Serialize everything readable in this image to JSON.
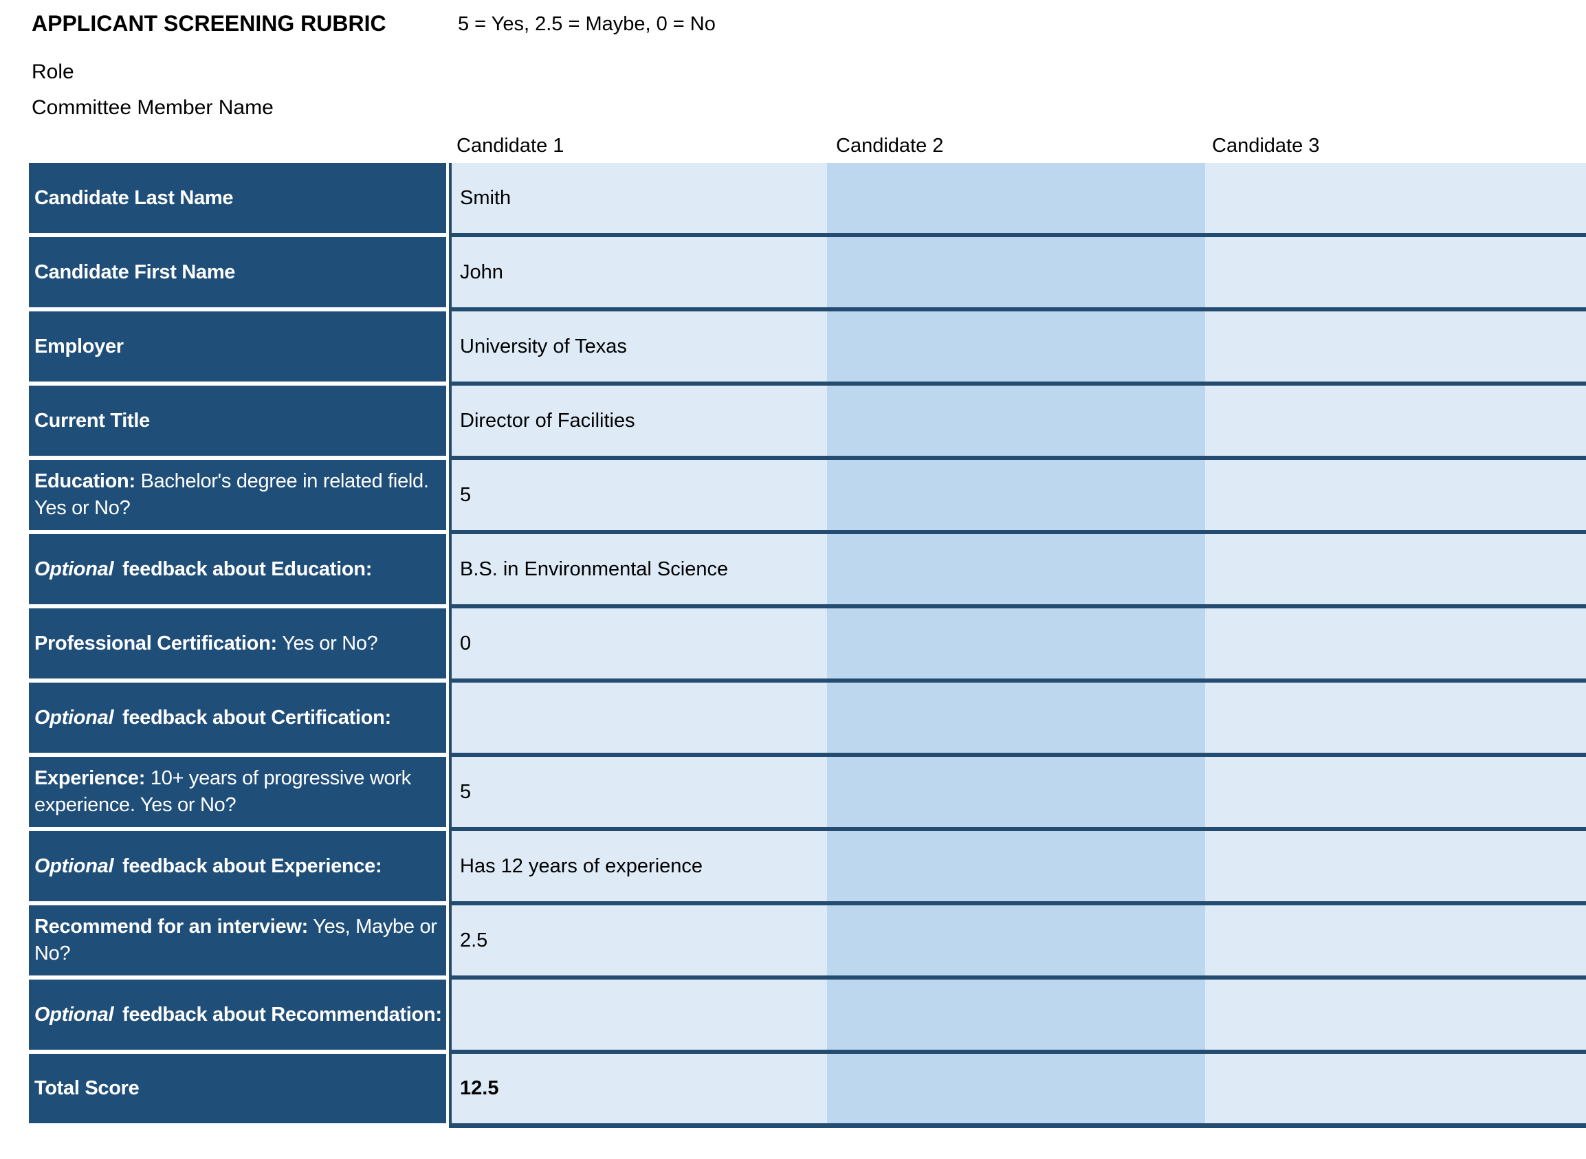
{
  "page": {
    "title": "APPLICANT SCREENING RUBRIC",
    "legend": "5 = Yes, 2.5 = Maybe, 0 = No",
    "role_label": "Role",
    "committee_label": "Committee Member Name"
  },
  "columns": [
    "Candidate 1",
    "Candidate 2",
    "Candidate 3"
  ],
  "colors": {
    "header_navy": "#1F4E79",
    "row_line_navy": "#234C70",
    "candidate_light_blue": "#DEEBF7",
    "candidate_medium_blue": "#BDD7EE",
    "label_text": "#FFFFFF",
    "value_text": "#000000"
  },
  "rows": [
    {
      "label_parts": [
        {
          "text": "Candidate Last Name",
          "bold": true,
          "italic": false
        }
      ],
      "values": [
        "Smith",
        "",
        ""
      ],
      "values_bold": false
    },
    {
      "label_parts": [
        {
          "text": "Candidate First Name",
          "bold": true,
          "italic": false
        }
      ],
      "values": [
        "John",
        "",
        ""
      ],
      "values_bold": false
    },
    {
      "label_parts": [
        {
          "text": "Employer",
          "bold": true,
          "italic": false
        }
      ],
      "values": [
        "University of Texas",
        "",
        ""
      ],
      "values_bold": false
    },
    {
      "label_parts": [
        {
          "text": "Current Title",
          "bold": true,
          "italic": false
        }
      ],
      "values": [
        "Director of Facilities",
        "",
        ""
      ],
      "values_bold": false
    },
    {
      "label_parts": [
        {
          "text": "Education:",
          "bold": true,
          "italic": false
        },
        {
          "text": " Bachelor's degree in related field. Yes or No?",
          "bold": false,
          "italic": false
        }
      ],
      "values": [
        "5",
        "",
        ""
      ],
      "values_bold": false
    },
    {
      "label_parts": [
        {
          "text": "Optional",
          "bold": true,
          "italic": true
        },
        {
          "text": " feedback about Education:",
          "bold": true,
          "italic": false
        }
      ],
      "values": [
        "B.S. in Environmental Science",
        "",
        ""
      ],
      "values_bold": false
    },
    {
      "label_parts": [
        {
          "text": "Professional Certification:",
          "bold": true,
          "italic": false
        },
        {
          "text": " Yes or No?",
          "bold": false,
          "italic": false
        }
      ],
      "values": [
        "0",
        "",
        ""
      ],
      "values_bold": false
    },
    {
      "label_parts": [
        {
          "text": "Optional",
          "bold": true,
          "italic": true
        },
        {
          "text": " feedback about Certification:",
          "bold": true,
          "italic": false
        }
      ],
      "values": [
        "",
        "",
        ""
      ],
      "values_bold": false
    },
    {
      "label_parts": [
        {
          "text": "Experience:",
          "bold": true,
          "italic": false
        },
        {
          "text": " 10+ years of progressive work experience. Yes or No?",
          "bold": false,
          "italic": false
        }
      ],
      "values": [
        "5",
        "",
        ""
      ],
      "values_bold": false
    },
    {
      "label_parts": [
        {
          "text": "Optional",
          "bold": true,
          "italic": true
        },
        {
          "text": " feedback about Experience:",
          "bold": true,
          "italic": false
        }
      ],
      "values": [
        "Has 12 years of experience",
        "",
        ""
      ],
      "values_bold": false
    },
    {
      "label_parts": [
        {
          "text": "Recommend for an interview:",
          "bold": true,
          "italic": false
        },
        {
          "text": " Yes, Maybe or No?",
          "bold": false,
          "italic": false
        }
      ],
      "values": [
        "2.5",
        "",
        ""
      ],
      "values_bold": false
    },
    {
      "label_parts": [
        {
          "text": "Optional",
          "bold": true,
          "italic": true
        },
        {
          "text": " feedback about Recommendation:",
          "bold": true,
          "italic": false
        }
      ],
      "values": [
        "",
        "",
        ""
      ],
      "values_bold": false
    },
    {
      "label_parts": [
        {
          "text": "Total Score",
          "bold": true,
          "italic": false
        }
      ],
      "values": [
        "12.5",
        "",
        ""
      ],
      "values_bold": true
    }
  ]
}
